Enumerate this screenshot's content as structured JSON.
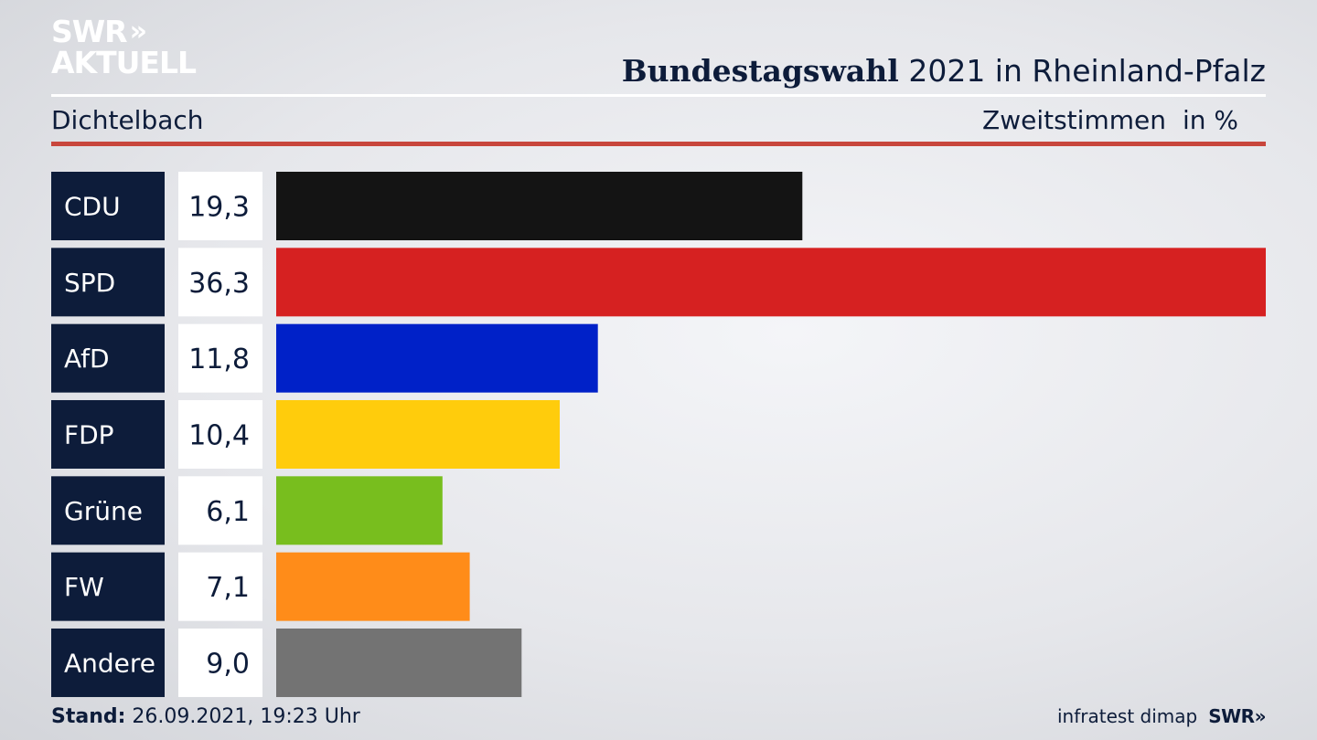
{
  "header": {
    "logo_line1": "SWR",
    "logo_chevrons": "»",
    "logo_line2": "AKTUELL",
    "title_bold": "Bundestagswahl",
    "title_rest": "2021 in Rheinland-Pfalz",
    "subtitle": "Dichtelbach",
    "measure": "Zweitstimmen",
    "unit": "in %"
  },
  "footer": {
    "stand_label": "Stand:",
    "stand_value": "26.09.2021, 19:23 Uhr",
    "source": "infratest dimap",
    "brand": "SWR»"
  },
  "chart_data": {
    "type": "bar",
    "orientation": "horizontal",
    "categories": [
      "CDU",
      "SPD",
      "AfD",
      "FDP",
      "Grüne",
      "FW",
      "Andere"
    ],
    "values": [
      19.3,
      36.3,
      11.8,
      10.4,
      6.1,
      7.1,
      9.0
    ],
    "value_labels": [
      "19,3",
      "36,3",
      "11,8",
      "10,4",
      "6,1",
      "7,1",
      "9,0"
    ],
    "colors": [
      "#141414",
      "#d62121",
      "#0021c8",
      "#ffcc0c",
      "#78be1e",
      "#ff8c19",
      "#737373"
    ],
    "xlim": [
      0,
      36.3
    ],
    "label_box_color": "#0d1c3a",
    "value_box_color": "#ffffff",
    "grid": false,
    "legend": "none"
  }
}
